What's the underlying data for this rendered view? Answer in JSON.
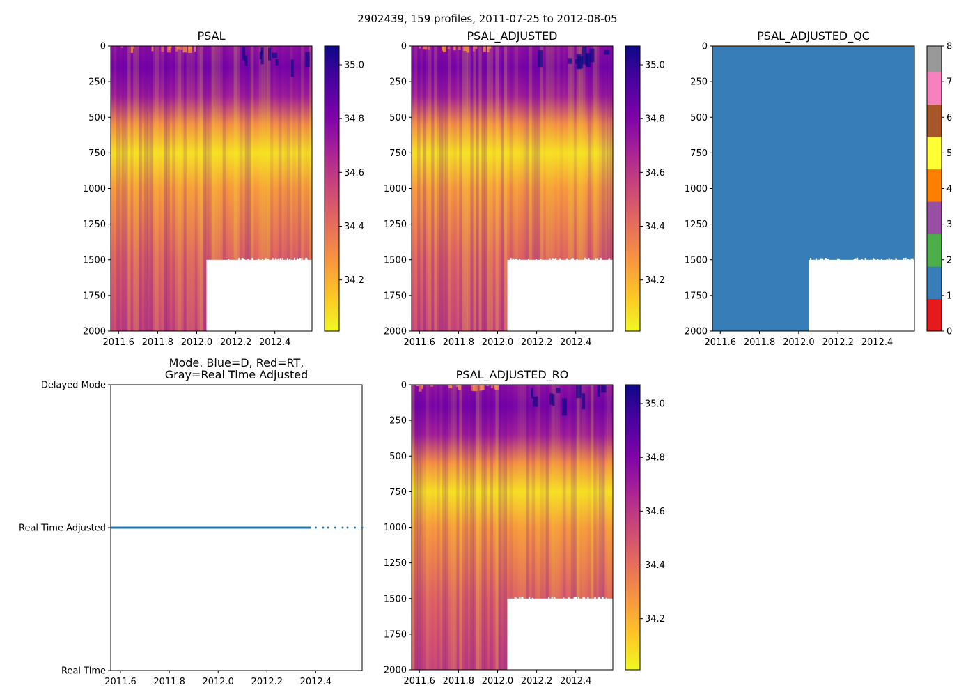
{
  "figure": {
    "suptitle": "2902439, 159 profiles, 2011-07-25 to 2012-08-05"
  },
  "colors": {
    "plasma_reversed": [
      "#f0f921",
      "#fdc527",
      "#f89540",
      "#e66c5c",
      "#cc4778",
      "#aa2395",
      "#7e03a8",
      "#4c02a1",
      "#0d0887"
    ],
    "qc_classes": [
      "#e41a1c",
      "#377eb8",
      "#4daf4a",
      "#984ea3",
      "#ff7f00",
      "#ffff33",
      "#a65628",
      "#f781bf",
      "#999999"
    ],
    "mode_line": "#1f77b4",
    "no_data": "#ffffff"
  },
  "chart_data": [
    {
      "id": "psal",
      "type": "heatmap",
      "title": "PSAL",
      "xlabel": "",
      "ylabel": "",
      "xlim": [
        2011.56,
        2012.59
      ],
      "ylim": [
        2000,
        0
      ],
      "xticks": [
        "2011.6",
        "2011.8",
        "2012.0",
        "2012.2",
        "2012.4"
      ],
      "yticks": [
        "0",
        "250",
        "500",
        "750",
        "1000",
        "1250",
        "1500",
        "1750",
        "2000"
      ],
      "clim": [
        34.01,
        35.07
      ],
      "colorbar_ticks": [
        "34.2",
        "34.4",
        "34.6",
        "34.8",
        "35.0"
      ],
      "colormap": "plasma_r",
      "no_data_region": {
        "x_from": 2012.05,
        "depth_from": 1500
      },
      "approx_profile": [
        {
          "depth": 0,
          "value": 34.75
        },
        {
          "depth": 150,
          "value": 34.82
        },
        {
          "depth": 350,
          "value": 34.7
        },
        {
          "depth": 550,
          "value": 34.3
        },
        {
          "depth": 750,
          "value": 34.08
        },
        {
          "depth": 1000,
          "value": 34.27
        },
        {
          "depth": 1500,
          "value": 34.45
        },
        {
          "depth": 2000,
          "value": 34.55
        }
      ]
    },
    {
      "id": "psal_adjusted",
      "type": "heatmap",
      "title": "PSAL_ADJUSTED",
      "xlabel": "",
      "ylabel": "",
      "xlim": [
        2011.56,
        2012.59
      ],
      "ylim": [
        2000,
        0
      ],
      "xticks": [
        "2011.6",
        "2011.8",
        "2012.0",
        "2012.2",
        "2012.4"
      ],
      "yticks": [
        "0",
        "250",
        "500",
        "750",
        "1000",
        "1250",
        "1500",
        "1750",
        "2000"
      ],
      "clim": [
        34.01,
        35.07
      ],
      "colorbar_ticks": [
        "34.2",
        "34.4",
        "34.6",
        "34.8",
        "35.0"
      ],
      "colormap": "plasma_r",
      "no_data_region": {
        "x_from": 2012.05,
        "depth_from": 1500
      }
    },
    {
      "id": "psal_adjusted_qc",
      "type": "heatmap",
      "title": "PSAL_ADJUSTED_QC",
      "xlabel": "",
      "ylabel": "",
      "xlim": [
        2011.56,
        2012.59
      ],
      "ylim": [
        2000,
        0
      ],
      "xticks": [
        "2011.6",
        "2011.8",
        "2012.0",
        "2012.2",
        "2012.4"
      ],
      "yticks": [
        "0",
        "250",
        "500",
        "750",
        "1000",
        "1250",
        "1500",
        "1750",
        "2000"
      ],
      "clim": [
        0,
        8
      ],
      "colorbar_ticks": [
        "0",
        "1",
        "2",
        "3",
        "4",
        "5",
        "6",
        "7",
        "8"
      ],
      "dominant_qc_value": 1,
      "no_data_region": {
        "x_from": 2012.05,
        "depth_from": 1500
      }
    },
    {
      "id": "mode",
      "type": "line",
      "title": "Mode. Blue=D, Red=RT,\nGray=Real Time Adjusted",
      "xlabel": "",
      "ylabel": "",
      "xlim": [
        2011.56,
        2012.59
      ],
      "ylim": [
        0,
        2
      ],
      "xticks": [
        "2011.6",
        "2011.8",
        "2012.0",
        "2012.2",
        "2012.4"
      ],
      "ytick_labels": [
        "Real Time",
        "Real Time Adjusted",
        "Delayed Mode"
      ],
      "series": [
        {
          "name": "Real Time Adjusted (continuous)",
          "x": [
            2011.56,
            2012.38
          ],
          "y": [
            1,
            1
          ],
          "style": "solid"
        },
        {
          "name": "Real Time Adjusted (sparse)",
          "x": [
            2012.4,
            2012.43,
            2012.45,
            2012.48,
            2012.51,
            2012.53,
            2012.56,
            2012.59
          ],
          "y": [
            1,
            1,
            1,
            1,
            1,
            1,
            1,
            1
          ],
          "style": "dots"
        }
      ]
    },
    {
      "id": "psal_adjusted_ro",
      "type": "heatmap",
      "title": "PSAL_ADJUSTED_RO",
      "xlabel": "",
      "ylabel": "",
      "xlim": [
        2011.56,
        2012.59
      ],
      "ylim": [
        2000,
        0
      ],
      "xticks": [
        "2011.6",
        "2011.8",
        "2012.0",
        "2012.2",
        "2012.4"
      ],
      "yticks": [
        "0",
        "250",
        "500",
        "750",
        "1000",
        "1250",
        "1500",
        "1750",
        "2000"
      ],
      "clim": [
        34.01,
        35.07
      ],
      "colorbar_ticks": [
        "34.2",
        "34.4",
        "34.6",
        "34.8",
        "35.0"
      ],
      "colormap": "plasma_r",
      "no_data_region": {
        "x_from": 2012.05,
        "depth_from": 1500
      }
    }
  ]
}
